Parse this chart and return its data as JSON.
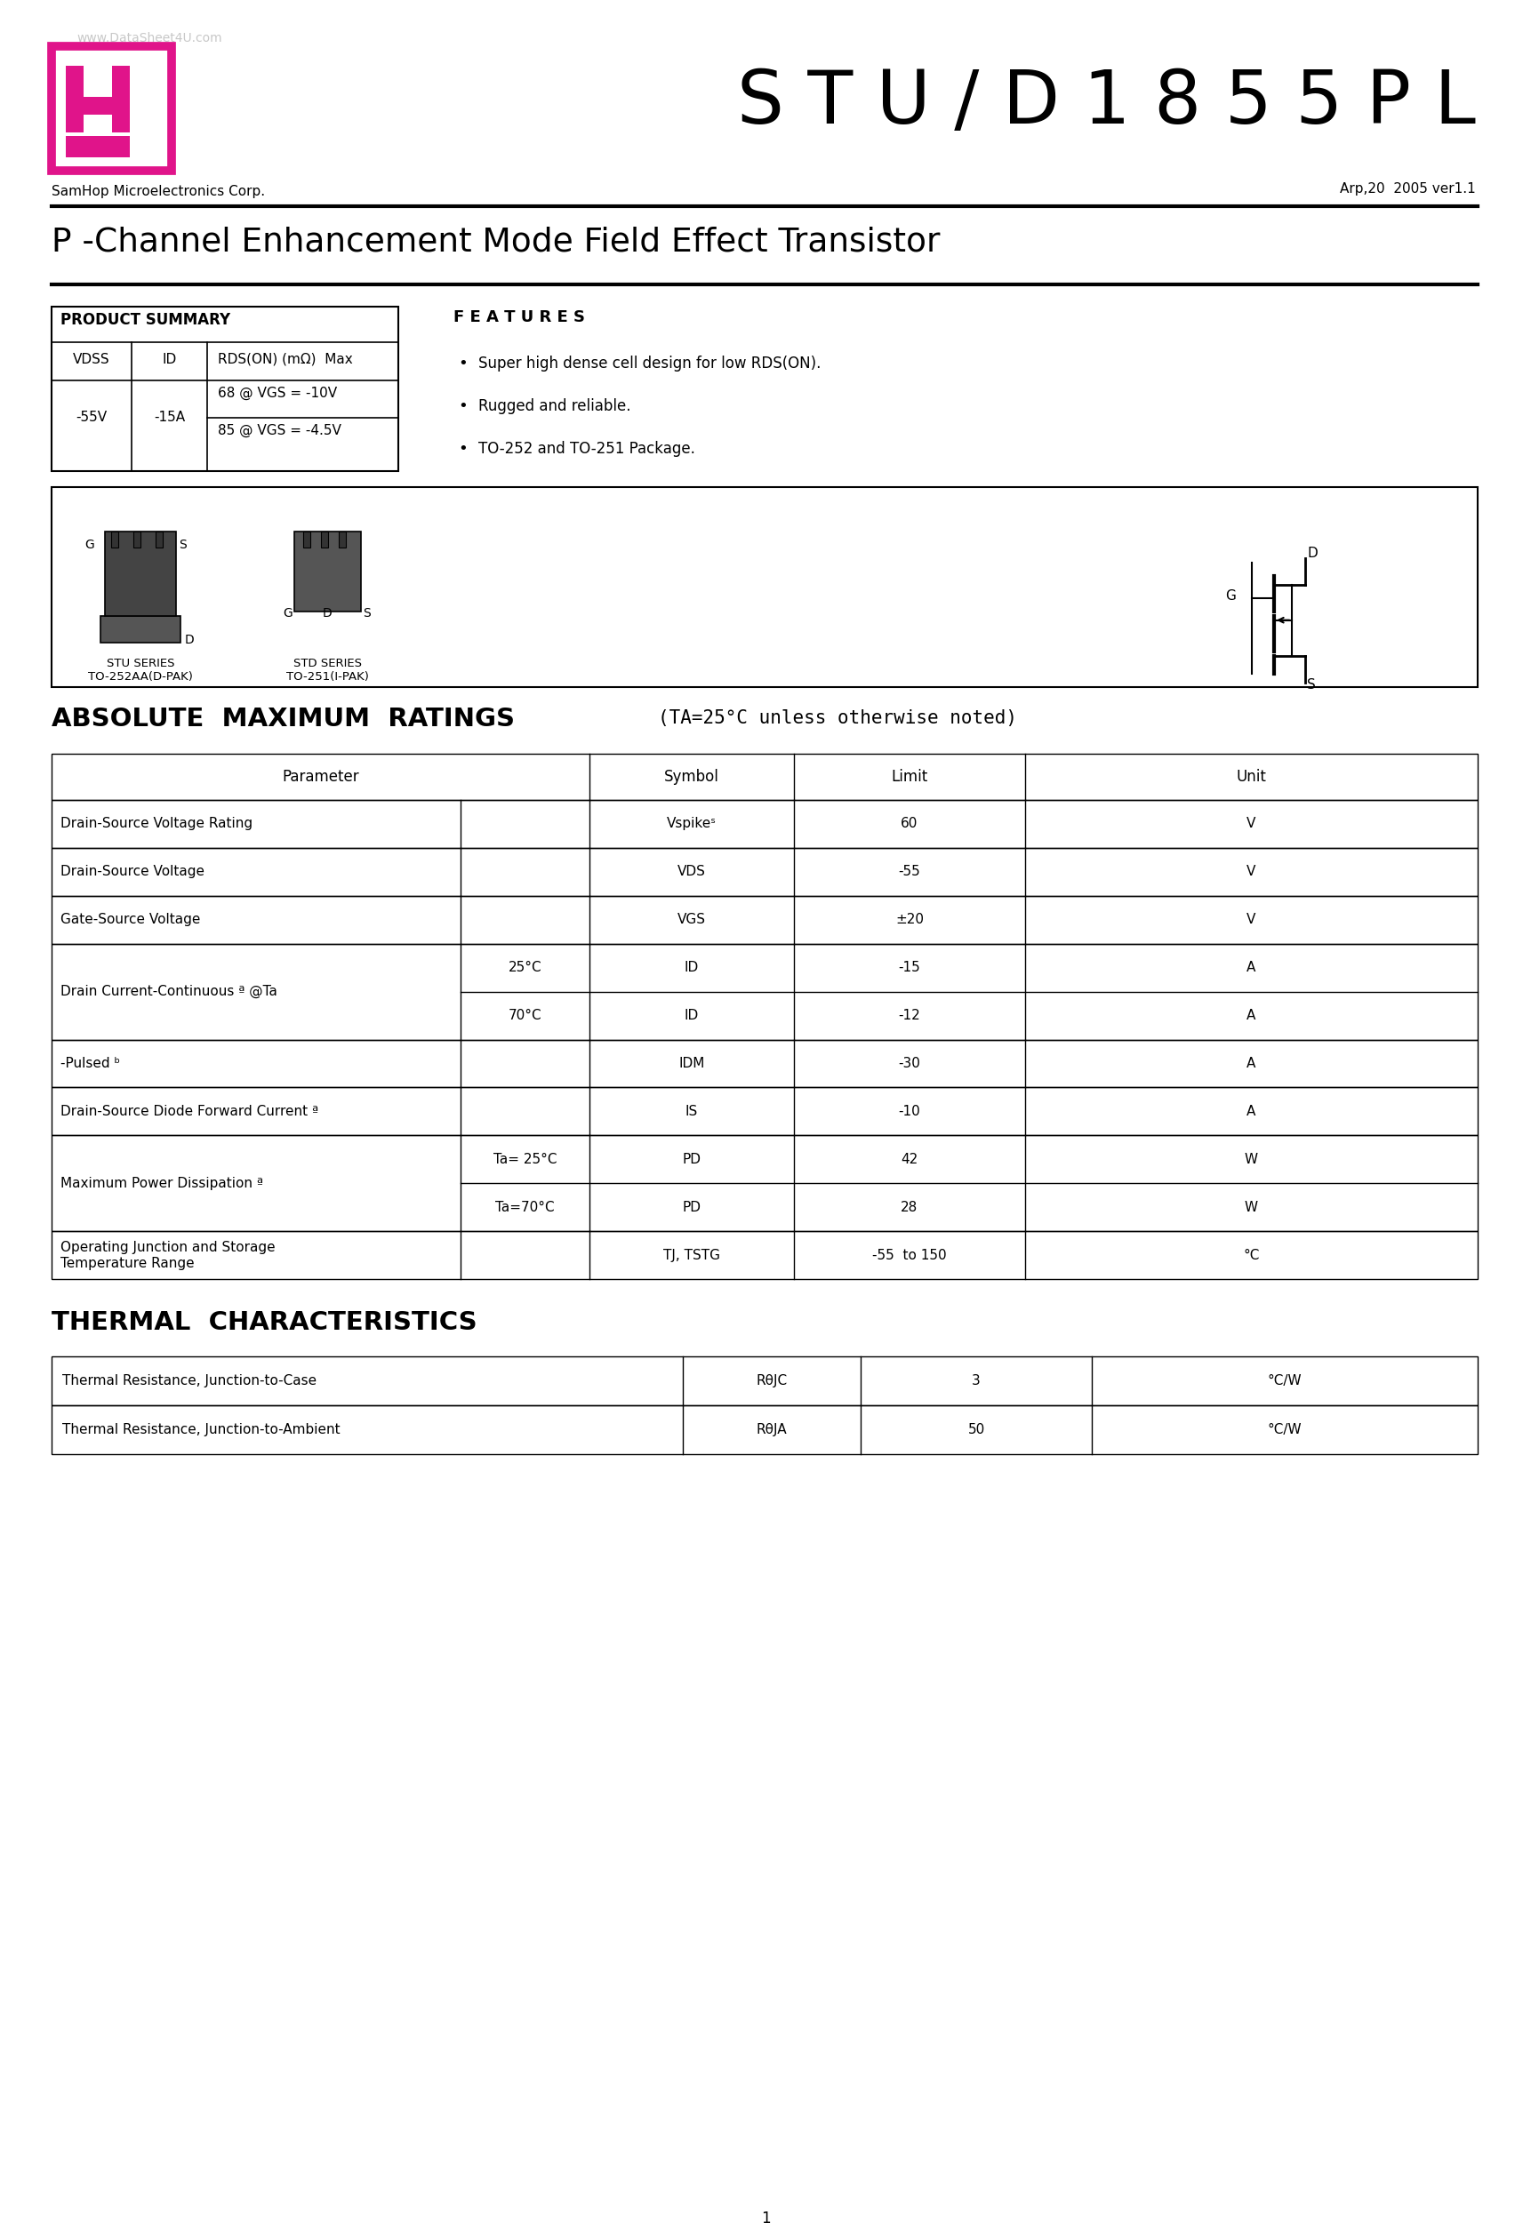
{
  "page_width": 17.22,
  "page_height": 25.1,
  "bg_color": "#ffffff",
  "watermark": "www.DataSheet4U.com",
  "logo_color": "#e0148a",
  "company": "SamHop Microelectronics Corp.",
  "date_code": "Arp,20  2005 ver1.1",
  "part_number": "S T U / D 1 8 5 5 P L",
  "subtitle": "P -Channel Enhancement Mode Field Effect Transistor",
  "product_summary_title": "PRODUCT SUMMARY",
  "ps_col1": "-55V",
  "ps_col2": "-15A",
  "ps_row1_val": "68 @ VGS = -10V",
  "ps_row2_val": "85 @ VGS = -4.5V",
  "features_title": "F E A T U R E S",
  "features": [
    "Super high dense cell design for low RDS(ON).",
    "Rugged and reliable.",
    "TO-252 and TO-251 Package."
  ],
  "section1_title": "ABSOLUTE  MAXIMUM  RATINGS",
  "section1_note": "(TA=25°C unless otherwise noted)",
  "section2_title": "THERMAL  CHARACTERISTICS",
  "tc_rows": [
    [
      "Thermal Resistance, Junction-to-Case",
      "RθJC",
      "3",
      "°C/W"
    ],
    [
      "Thermal Resistance, Junction-to-Ambient",
      "RθJA",
      "50",
      "°C/W"
    ]
  ],
  "page_num": "1"
}
